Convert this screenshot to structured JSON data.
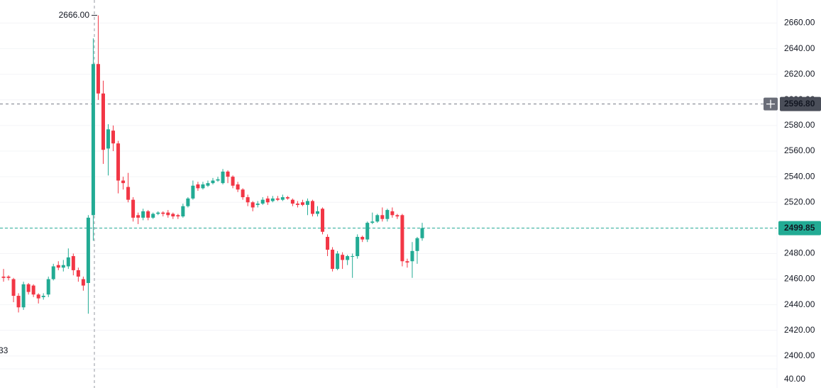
{
  "chart_data": {
    "type": "candlestick",
    "up_color": "#22ab94",
    "down_color": "#f23645",
    "ylim": [
      2375,
      2678
    ],
    "yticks": [
      {
        "value": 2400,
        "label": "2400.00"
      },
      {
        "value": 2420,
        "label": "2420.00"
      },
      {
        "value": 2440,
        "label": "2440.00"
      },
      {
        "value": 2460,
        "label": "2460.00"
      },
      {
        "value": 2480,
        "label": "2480.00"
      },
      {
        "value": 2500,
        "label": "2500.00"
      },
      {
        "value": 2520,
        "label": "2520.00"
      },
      {
        "value": 2540,
        "label": "2540.00"
      },
      {
        "value": 2560,
        "label": "2560.00"
      },
      {
        "value": 2580,
        "label": "2580.00"
      },
      {
        "value": 2600,
        "label": "2600.00"
      },
      {
        "value": 2620,
        "label": "2620.00"
      },
      {
        "value": 2640,
        "label": "2640.00"
      },
      {
        "value": 2660,
        "label": "2660.00"
      }
    ],
    "grid": true,
    "open": [
      2462,
      2462,
      2460,
      2447,
      2438,
      2456,
      2455,
      2448,
      2446,
      2448,
      2460,
      2471,
      2469,
      2470,
      2478,
      2467,
      2460,
      2457,
      2510,
      2628,
      2605,
      2562,
      2576,
      2566,
      2537,
      2532,
      2522,
      2510,
      2508,
      2513,
      2508,
      2511,
      2512,
      2512,
      2511,
      2510,
      2509,
      2517,
      2523,
      2534,
      2531,
      2533,
      2535,
      2537,
      2535,
      2544,
      2540,
      2534,
      2530,
      2524,
      2520,
      2518,
      2519,
      2523,
      2521,
      2523,
      2522,
      2524,
      2522,
      2519,
      2520,
      2518,
      2521,
      2511,
      2515,
      2493,
      2483,
      2468,
      2479,
      2475,
      2478,
      2478,
      2493,
      2491,
      2504,
      2505,
      2510,
      2507,
      2513,
      2510,
      2510,
      2474,
      2474,
      2482,
      2492
    ],
    "high": [
      2468,
      2463,
      2461,
      2449,
      2458,
      2457,
      2456,
      2449,
      2449,
      2462,
      2472,
      2474,
      2475,
      2484,
      2480,
      2469,
      2462,
      2510,
      2648,
      2666,
      2615,
      2581,
      2580,
      2568,
      2540,
      2543,
      2524,
      2512,
      2515,
      2514,
      2512,
      2513,
      2513,
      2514,
      2512,
      2511,
      2519,
      2524,
      2537,
      2536,
      2536,
      2537,
      2539,
      2540,
      2546,
      2545,
      2541,
      2536,
      2531,
      2526,
      2521,
      2521,
      2524,
      2525,
      2525,
      2525,
      2526,
      2525,
      2523,
      2521,
      2522,
      2523,
      2522,
      2517,
      2516,
      2495,
      2485,
      2482,
      2481,
      2479,
      2480,
      2495,
      2494,
      2505,
      2512,
      2511,
      2516,
      2515,
      2516,
      2511,
      2511,
      2476,
      2489,
      2493,
      2504
    ],
    "low": [
      2458,
      2459,
      2442,
      2434,
      2436,
      2448,
      2446,
      2441,
      2444,
      2446,
      2459,
      2467,
      2466,
      2468,
      2463,
      2458,
      2451,
      2433,
      2490,
      2600,
      2550,
      2541,
      2560,
      2527,
      2530,
      2520,
      2505,
      2503,
      2506,
      2506,
      2507,
      2510,
      2509,
      2508,
      2507,
      2507,
      2508,
      2516,
      2522,
      2529,
      2530,
      2532,
      2534,
      2536,
      2534,
      2535,
      2531,
      2528,
      2522,
      2517,
      2513,
      2516,
      2518,
      2518,
      2520,
      2521,
      2521,
      2522,
      2517,
      2516,
      2517,
      2510,
      2509,
      2509,
      2495,
      2478,
      2466,
      2467,
      2468,
      2471,
      2461,
      2476,
      2489,
      2489,
      2503,
      2504,
      2505,
      2505,
      2508,
      2507,
      2470,
      2469,
      2461,
      2472,
      2490
    ],
    "close": [
      2461,
      2461,
      2447,
      2438,
      2456,
      2450,
      2448,
      2445,
      2447,
      2460,
      2470,
      2469,
      2471,
      2477,
      2467,
      2462,
      2455,
      2508,
      2628,
      2605,
      2561,
      2577,
      2566,
      2537,
      2535,
      2522,
      2508,
      2508,
      2513,
      2508,
      2511,
      2512,
      2511,
      2510,
      2509,
      2509,
      2517,
      2523,
      2533,
      2531,
      2534,
      2535,
      2537,
      2538,
      2544,
      2540,
      2533,
      2530,
      2524,
      2520,
      2516,
      2519,
      2522,
      2520,
      2523,
      2522,
      2524,
      2523,
      2519,
      2518,
      2518,
      2521,
      2511,
      2513,
      2497,
      2483,
      2468,
      2480,
      2475,
      2478,
      2478,
      2493,
      2491,
      2504,
      2505,
      2510,
      2507,
      2514,
      2510,
      2509,
      2474,
      2473,
      2482,
      2492,
      2499.85
    ],
    "high_marker": {
      "value": 2666,
      "label": "2666.00"
    },
    "crosshair": {
      "value": 2596.8,
      "label": "2596.80"
    },
    "last_price": {
      "value": 2499.85,
      "label": "2499.85"
    },
    "lower_pane_tick": "40.00",
    "left_partial_label": "33"
  }
}
